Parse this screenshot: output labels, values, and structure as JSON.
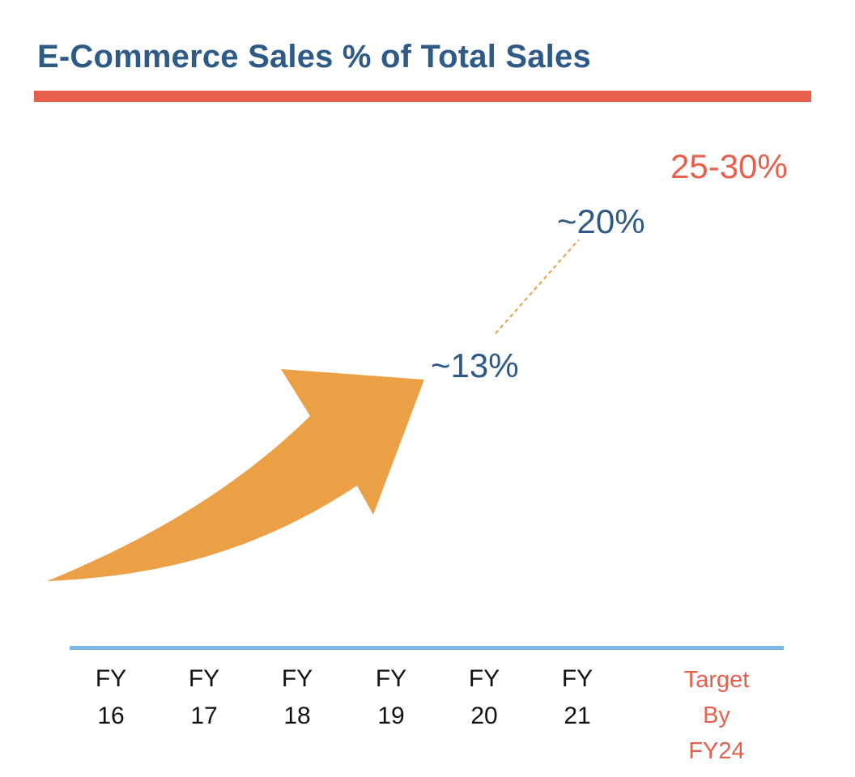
{
  "colors": {
    "title": "#2e5a88",
    "title_rule": "#e8604c",
    "axis": "#7bb8e8",
    "arrow": "#eca045",
    "dotted_connector": "#eca045",
    "actual_label": "#2e5a88",
    "target_label": "#e8604c",
    "tick_text": "#111111"
  },
  "chart_data": {
    "type": "line",
    "title": "E-Commerce Sales % of Total Sales",
    "xlabel": "",
    "ylabel": "",
    "categories": [
      {
        "line1": "FY",
        "line2": "16"
      },
      {
        "line1": "FY",
        "line2": "17"
      },
      {
        "line1": "FY",
        "line2": "18"
      },
      {
        "line1": "FY",
        "line2": "19"
      },
      {
        "line1": "FY",
        "line2": "20"
      },
      {
        "line1": "FY",
        "line2": "21"
      },
      {
        "line1": "Target",
        "line2": "By FY24"
      }
    ],
    "annotations": [
      {
        "category_index": 3.8,
        "label": "~13%",
        "value": 13
      },
      {
        "category_index": 5.0,
        "label": "~20%",
        "value": 20
      },
      {
        "category_index": 6.3,
        "label": "25-30%",
        "value": 27.5
      }
    ],
    "grid": false,
    "legend": "none"
  }
}
